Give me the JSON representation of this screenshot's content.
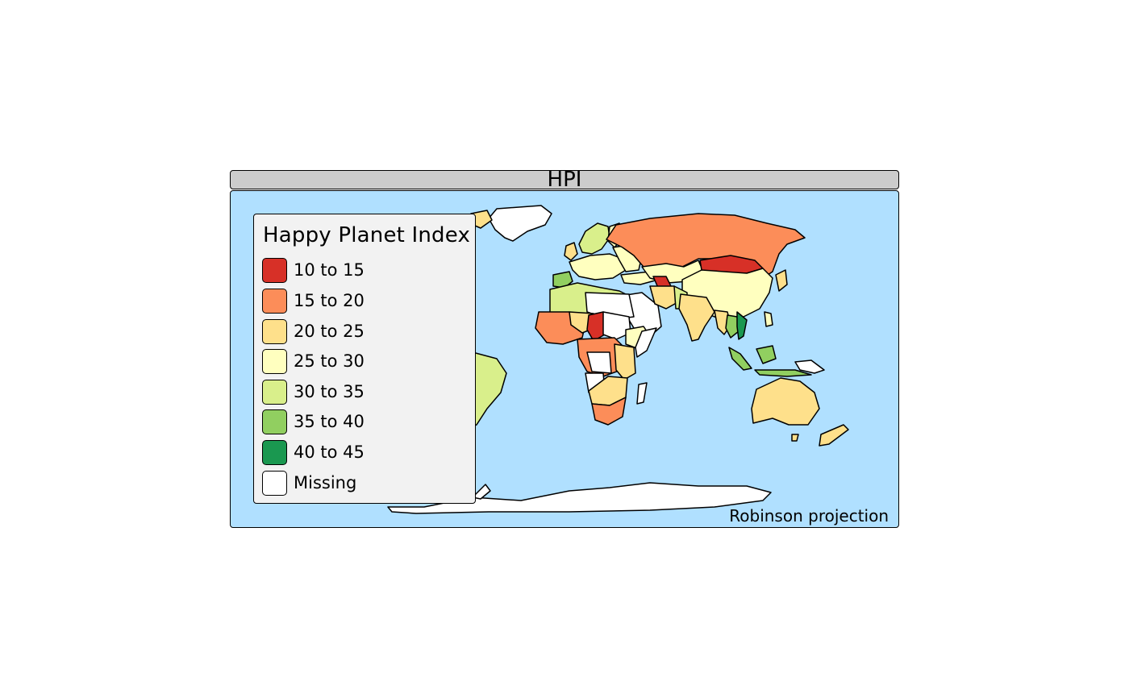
{
  "panel": {
    "title": "HPI"
  },
  "legend": {
    "title": "Happy Planet Index",
    "items": [
      {
        "label": "10 to 15",
        "color": "#d73027"
      },
      {
        "label": "15 to 20",
        "color": "#fc8d59"
      },
      {
        "label": "20 to 25",
        "color": "#fee08b"
      },
      {
        "label": "25 to 30",
        "color": "#ffffbf"
      },
      {
        "label": "30 to 35",
        "color": "#d9ef8b"
      },
      {
        "label": "35 to 40",
        "color": "#91cf60"
      },
      {
        "label": "40 to 45",
        "color": "#1a9850"
      },
      {
        "label": "Missing",
        "color": "#ffffff"
      }
    ]
  },
  "map": {
    "ocean_color": "#b0e0ff",
    "projection_credit": "Robinson projection"
  }
}
